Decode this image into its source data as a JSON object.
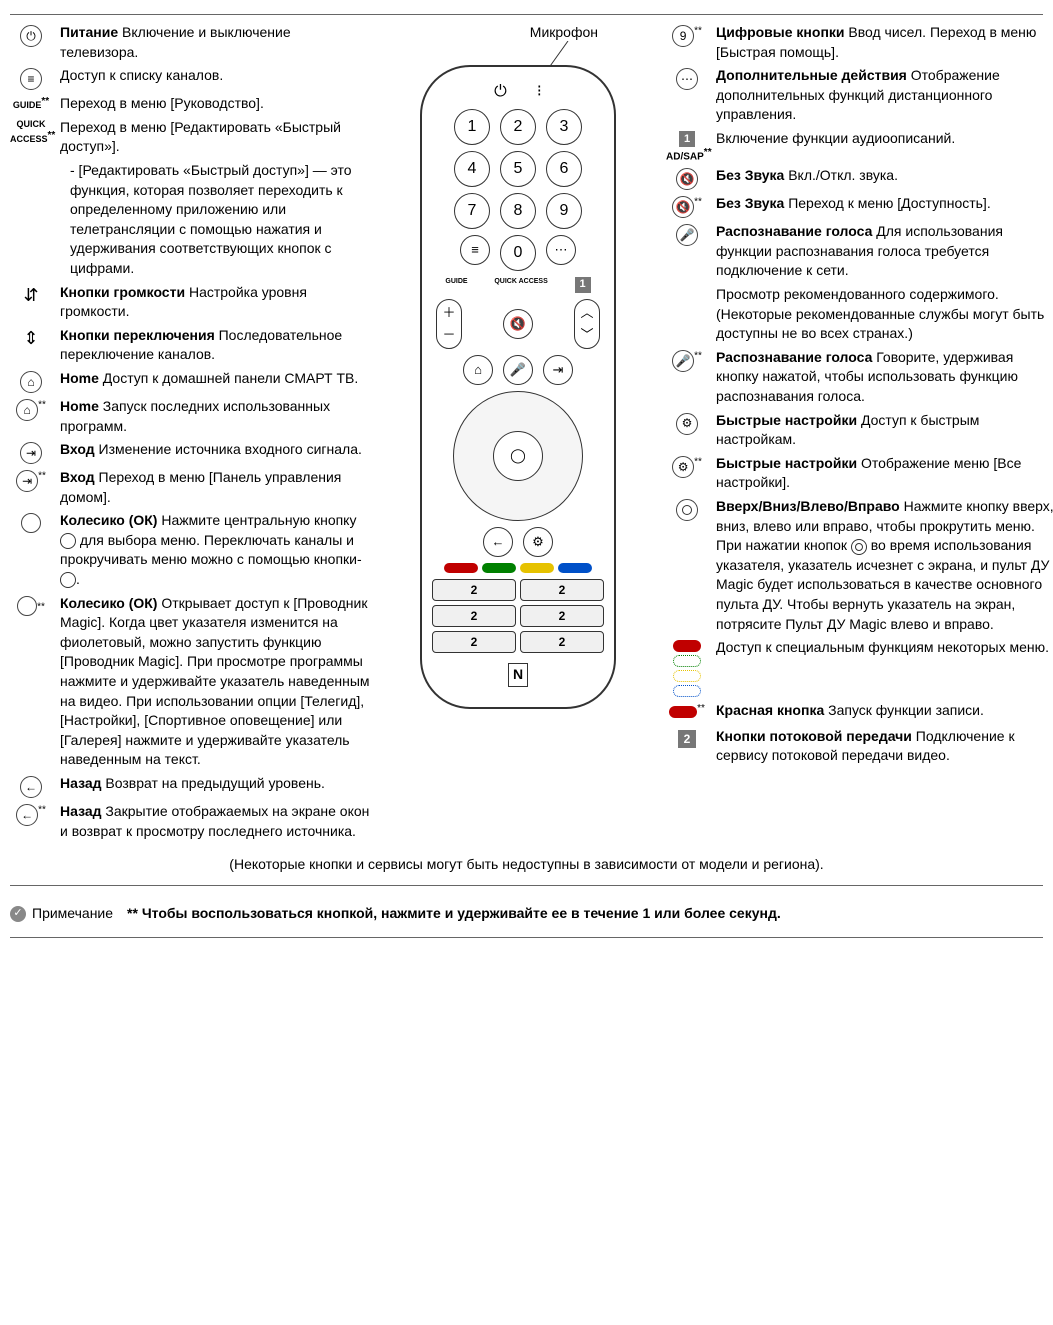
{
  "colors": {
    "text": "#000000",
    "border": "#333333",
    "bg": "#ffffff",
    "red": "#c00000",
    "green": "#008000",
    "yellow": "#e6c200",
    "blue": "#0050c8",
    "grey_box": "#777777"
  },
  "mic_label": "Микрофон",
  "remote": {
    "numbers": [
      "1",
      "2",
      "3",
      "4",
      "5",
      "6",
      "7",
      "8",
      "9",
      "0"
    ],
    "guide_label": "GUIDE",
    "quick_label": "QUICK ACCESS",
    "badge_1": "1",
    "stream_badge": "2",
    "nfc": "N"
  },
  "left": [
    {
      "icon": "power",
      "sup": "",
      "title": "Питание",
      "text": "Включение и выключение телевизора."
    },
    {
      "icon": "list",
      "sup": "",
      "title": "",
      "text": "Доступ к списку каналов."
    },
    {
      "icon_text": "GUIDE",
      "sup": "**",
      "title": "",
      "text": "Переход в меню [Руководство]."
    },
    {
      "icon_text": "QUICK ACCESS",
      "sup": "**",
      "title": "",
      "text": "Переход в меню [Редактировать «Быстрый доступ»]."
    },
    {
      "indent": true,
      "text": "- [Редактировать «Быстрый доступ»] — это функция, которая позволяет переходить к определенному приложению или телетрансляции с помощью нажатия и удерживания соответствующих кнопок с цифрами."
    },
    {
      "icon": "vol",
      "sup": "",
      "title": "Кнопки громкости",
      "text": "Настройка уровня громкости."
    },
    {
      "icon": "ch",
      "sup": "",
      "title": "Кнопки переключения",
      "text": "Последовательное переключение каналов."
    },
    {
      "icon": "home",
      "sup": "",
      "title": "Home",
      "text": "Доступ к домашней панели СМАРТ ТВ."
    },
    {
      "icon": "home",
      "sup": "**",
      "title": "Home",
      "text": "Запуск последних использованных программ."
    },
    {
      "icon": "input",
      "sup": "",
      "title": "Вход",
      "text": "Изменение источника входного сигнала."
    },
    {
      "icon": "input",
      "sup": "**",
      "title": "Вход",
      "text": "Переход в меню [Панель управления домом]."
    },
    {
      "icon": "wheel",
      "sup": "",
      "title": "Колесико (ОК)",
      "text_html": "Нажмите центральную кнопку <span class='inline-circ'></span> для выбора меню. Переключать каналы и прокручивать меню можно с помощью кнопки-<span class='inline-circ'></span>."
    },
    {
      "icon": "wheel",
      "sup": "**",
      "title": "Колесико (ОК)",
      "text": "Открывает доступ к [Проводник Magic]. Когда цвет указателя изменится на фиолетовый, можно запустить функцию [Проводник Magic]. При просмотре программы нажмите и удерживайте указатель наведенным на видео. При использовании опции [Телегид], [Настройки], [Спортивное оповещение] или [Галерея] нажмите и удерживайте указатель наведенным на текст."
    },
    {
      "icon": "back",
      "sup": "",
      "title": "Назад",
      "text": "Возврат на предыдущий уровень."
    },
    {
      "icon": "back",
      "sup": "**",
      "title": "Назад",
      "text": "Закрытие отображаемых на экране окон и возврат к просмотру последнего источника."
    }
  ],
  "right": [
    {
      "icon": "nine",
      "sup": "**",
      "title": "Цифровые кнопки",
      "text": "Ввод чисел. Переход в меню [Быстрая помощь]."
    },
    {
      "icon": "dots",
      "sup": "",
      "title": "Дополнительные действия",
      "text": "Отображение дополнительных функций дистанционного управления."
    },
    {
      "icon_combo": "1 AD/SAP",
      "sup": "**",
      "title": "",
      "text": "Включение функции аудиоописаний."
    },
    {
      "icon": "mute",
      "sup": "",
      "title": "Без Звука",
      "text": "Вкл./Откл. звука."
    },
    {
      "icon": "mute",
      "sup": "**",
      "title": "Без Звука",
      "text": "Переход к меню [Доступность]."
    },
    {
      "icon": "mic",
      "sup": "",
      "title": "Распознавание голоса",
      "text": "Для использования функции распознавания голоса требуется подключение к сети."
    },
    {
      "no_icon": true,
      "text": "Просмотр рекомендованного содержимого. (Некоторые рекомендованные службы могут быть доступны не во всех странах.)"
    },
    {
      "icon": "mic",
      "sup": "**",
      "title": "Распознавание голоса",
      "text": "Говорите, удерживая кнопку нажатой, чтобы использовать функцию распознавания голоса."
    },
    {
      "icon": "gear",
      "sup": "",
      "title": "Быстрые настройки",
      "text": "Доступ к быстрым настройкам."
    },
    {
      "icon": "gear",
      "sup": "**",
      "title": "Быстрые настройки",
      "text": "Отображение меню [Все настройки]."
    },
    {
      "icon": "ring",
      "sup": "",
      "title": "Вверх/Вниз/Влево/Вправо",
      "text_html": "Нажмите кнопку вверх, вниз, влево или вправо, чтобы прокрутить меню. При нажатии кнопок <span class='inline-circ'><span class='inner-ring'></span></span> во время использования указателя, указатель исчезнет с экрана, и пульт ДУ Magic будет использоваться в качестве основного пульта ДУ. Чтобы вернуть указатель на экран, потрясите Пульт ДУ Magic влево и вправо."
    },
    {
      "color_stack": true,
      "text": "Доступ к специальным функциям некоторых меню."
    },
    {
      "icon": "red_pill",
      "sup": "**",
      "title": "Красная кнопка",
      "text": "Запуск функции записи."
    },
    {
      "icon": "num2",
      "sup": "",
      "title": "Кнопки потоковой передачи",
      "text": "Подключение к сервису потоковой передачи видео."
    }
  ],
  "availability": "(Некоторые кнопки и сервисы могут быть недоступны в зависимости от модели и региона).",
  "note": {
    "label": "Примечание",
    "text": "** Чтобы воспользоваться кнопкой, нажмите и удерживайте ее в течение 1 или более секунд."
  }
}
